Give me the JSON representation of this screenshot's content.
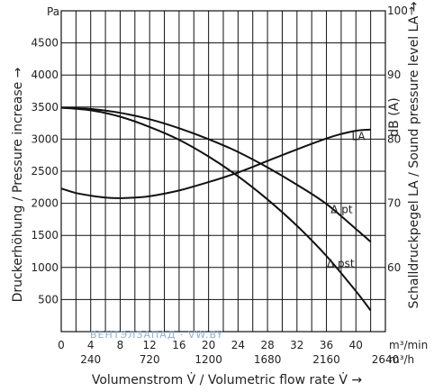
{
  "chart_data": {
    "type": "line",
    "xlabel": "Volumenstrom V̇ / Volumetric flow rate V̇  →",
    "x_unit_primary": "m³/min",
    "x_unit_secondary": "m³/h",
    "x_ticks_primary": [
      0,
      4,
      8,
      12,
      16,
      20,
      24,
      28,
      32,
      36,
      40
    ],
    "x_ticks_secondary": [
      240,
      720,
      1200,
      1680,
      2160,
      2640
    ],
    "xlim": [
      0,
      44
    ],
    "ylabel_left": "Druckerhöhung / Pressure increase  →",
    "y_unit_left": "Pa",
    "ylim_left": [
      0,
      5000
    ],
    "y_ticks_left": [
      500,
      1000,
      1500,
      2000,
      2500,
      3000,
      3500,
      4000,
      4500
    ],
    "ylabel_right": "Schalldruckpegel LA / Sound pressure level LA →",
    "y_unit_right": "dB (A)",
    "ylim_right": [
      50,
      100
    ],
    "y_ticks_right": [
      60,
      70,
      80,
      90,
      100
    ],
    "grid": true,
    "series": [
      {
        "name": "LA",
        "axis": "right",
        "x": [
          0,
          2,
          4,
          6,
          8,
          10,
          12,
          16,
          20,
          24,
          28,
          32,
          36,
          38,
          40,
          42
        ],
        "y": [
          72.3,
          71.6,
          71.2,
          70.9,
          70.8,
          70.9,
          71.1,
          72.0,
          73.3,
          74.8,
          76.6,
          78.4,
          80.1,
          80.8,
          81.3,
          81.5
        ]
      },
      {
        "name": "Δ pt",
        "axis": "left",
        "x": [
          0,
          4,
          8,
          12,
          16,
          20,
          24,
          28,
          32,
          36,
          40,
          42
        ],
        "y": [
          3490,
          3470,
          3410,
          3310,
          3170,
          3000,
          2800,
          2560,
          2290,
          1990,
          1600,
          1400
        ]
      },
      {
        "name": "Δ pst",
        "axis": "left",
        "x": [
          0,
          4,
          8,
          12,
          16,
          20,
          24,
          28,
          32,
          36,
          40,
          42
        ],
        "y": [
          3490,
          3450,
          3350,
          3190,
          2990,
          2730,
          2420,
          2060,
          1650,
          1180,
          630,
          330
        ]
      }
    ]
  },
  "watermark_text": "ВЕНТЭЛЗАПАД · VW.BY"
}
